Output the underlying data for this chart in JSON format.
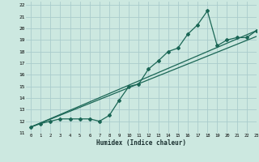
{
  "xlabel": "Humidex (Indice chaleur)",
  "xlim": [
    -0.5,
    23
  ],
  "ylim": [
    11,
    22.3
  ],
  "yticks": [
    11,
    12,
    13,
    14,
    15,
    16,
    17,
    18,
    19,
    20,
    21,
    22
  ],
  "xticks": [
    0,
    1,
    2,
    3,
    4,
    5,
    6,
    7,
    8,
    9,
    10,
    11,
    12,
    13,
    14,
    15,
    16,
    17,
    18,
    19,
    20,
    21,
    22,
    23
  ],
  "bg_color": "#cce8e0",
  "grid_color": "#aacccc",
  "line_color": "#1a6655",
  "line1_x": [
    0,
    1,
    2,
    3,
    4,
    5,
    6,
    7,
    8,
    9,
    10,
    11,
    12,
    13,
    14,
    15,
    16,
    17,
    18,
    19,
    20,
    21,
    22,
    23
  ],
  "line1_y": [
    11.5,
    11.8,
    12.0,
    12.2,
    12.2,
    12.2,
    12.2,
    12.0,
    12.5,
    13.8,
    15.0,
    15.2,
    16.5,
    17.2,
    18.0,
    18.3,
    19.5,
    20.3,
    21.5,
    18.5,
    19.0,
    19.2,
    19.2,
    19.8
  ],
  "line2_x": [
    0,
    23
  ],
  "line2_y": [
    11.5,
    19.8
  ],
  "line3_x": [
    0,
    23
  ],
  "line3_y": [
    11.5,
    19.3
  ]
}
